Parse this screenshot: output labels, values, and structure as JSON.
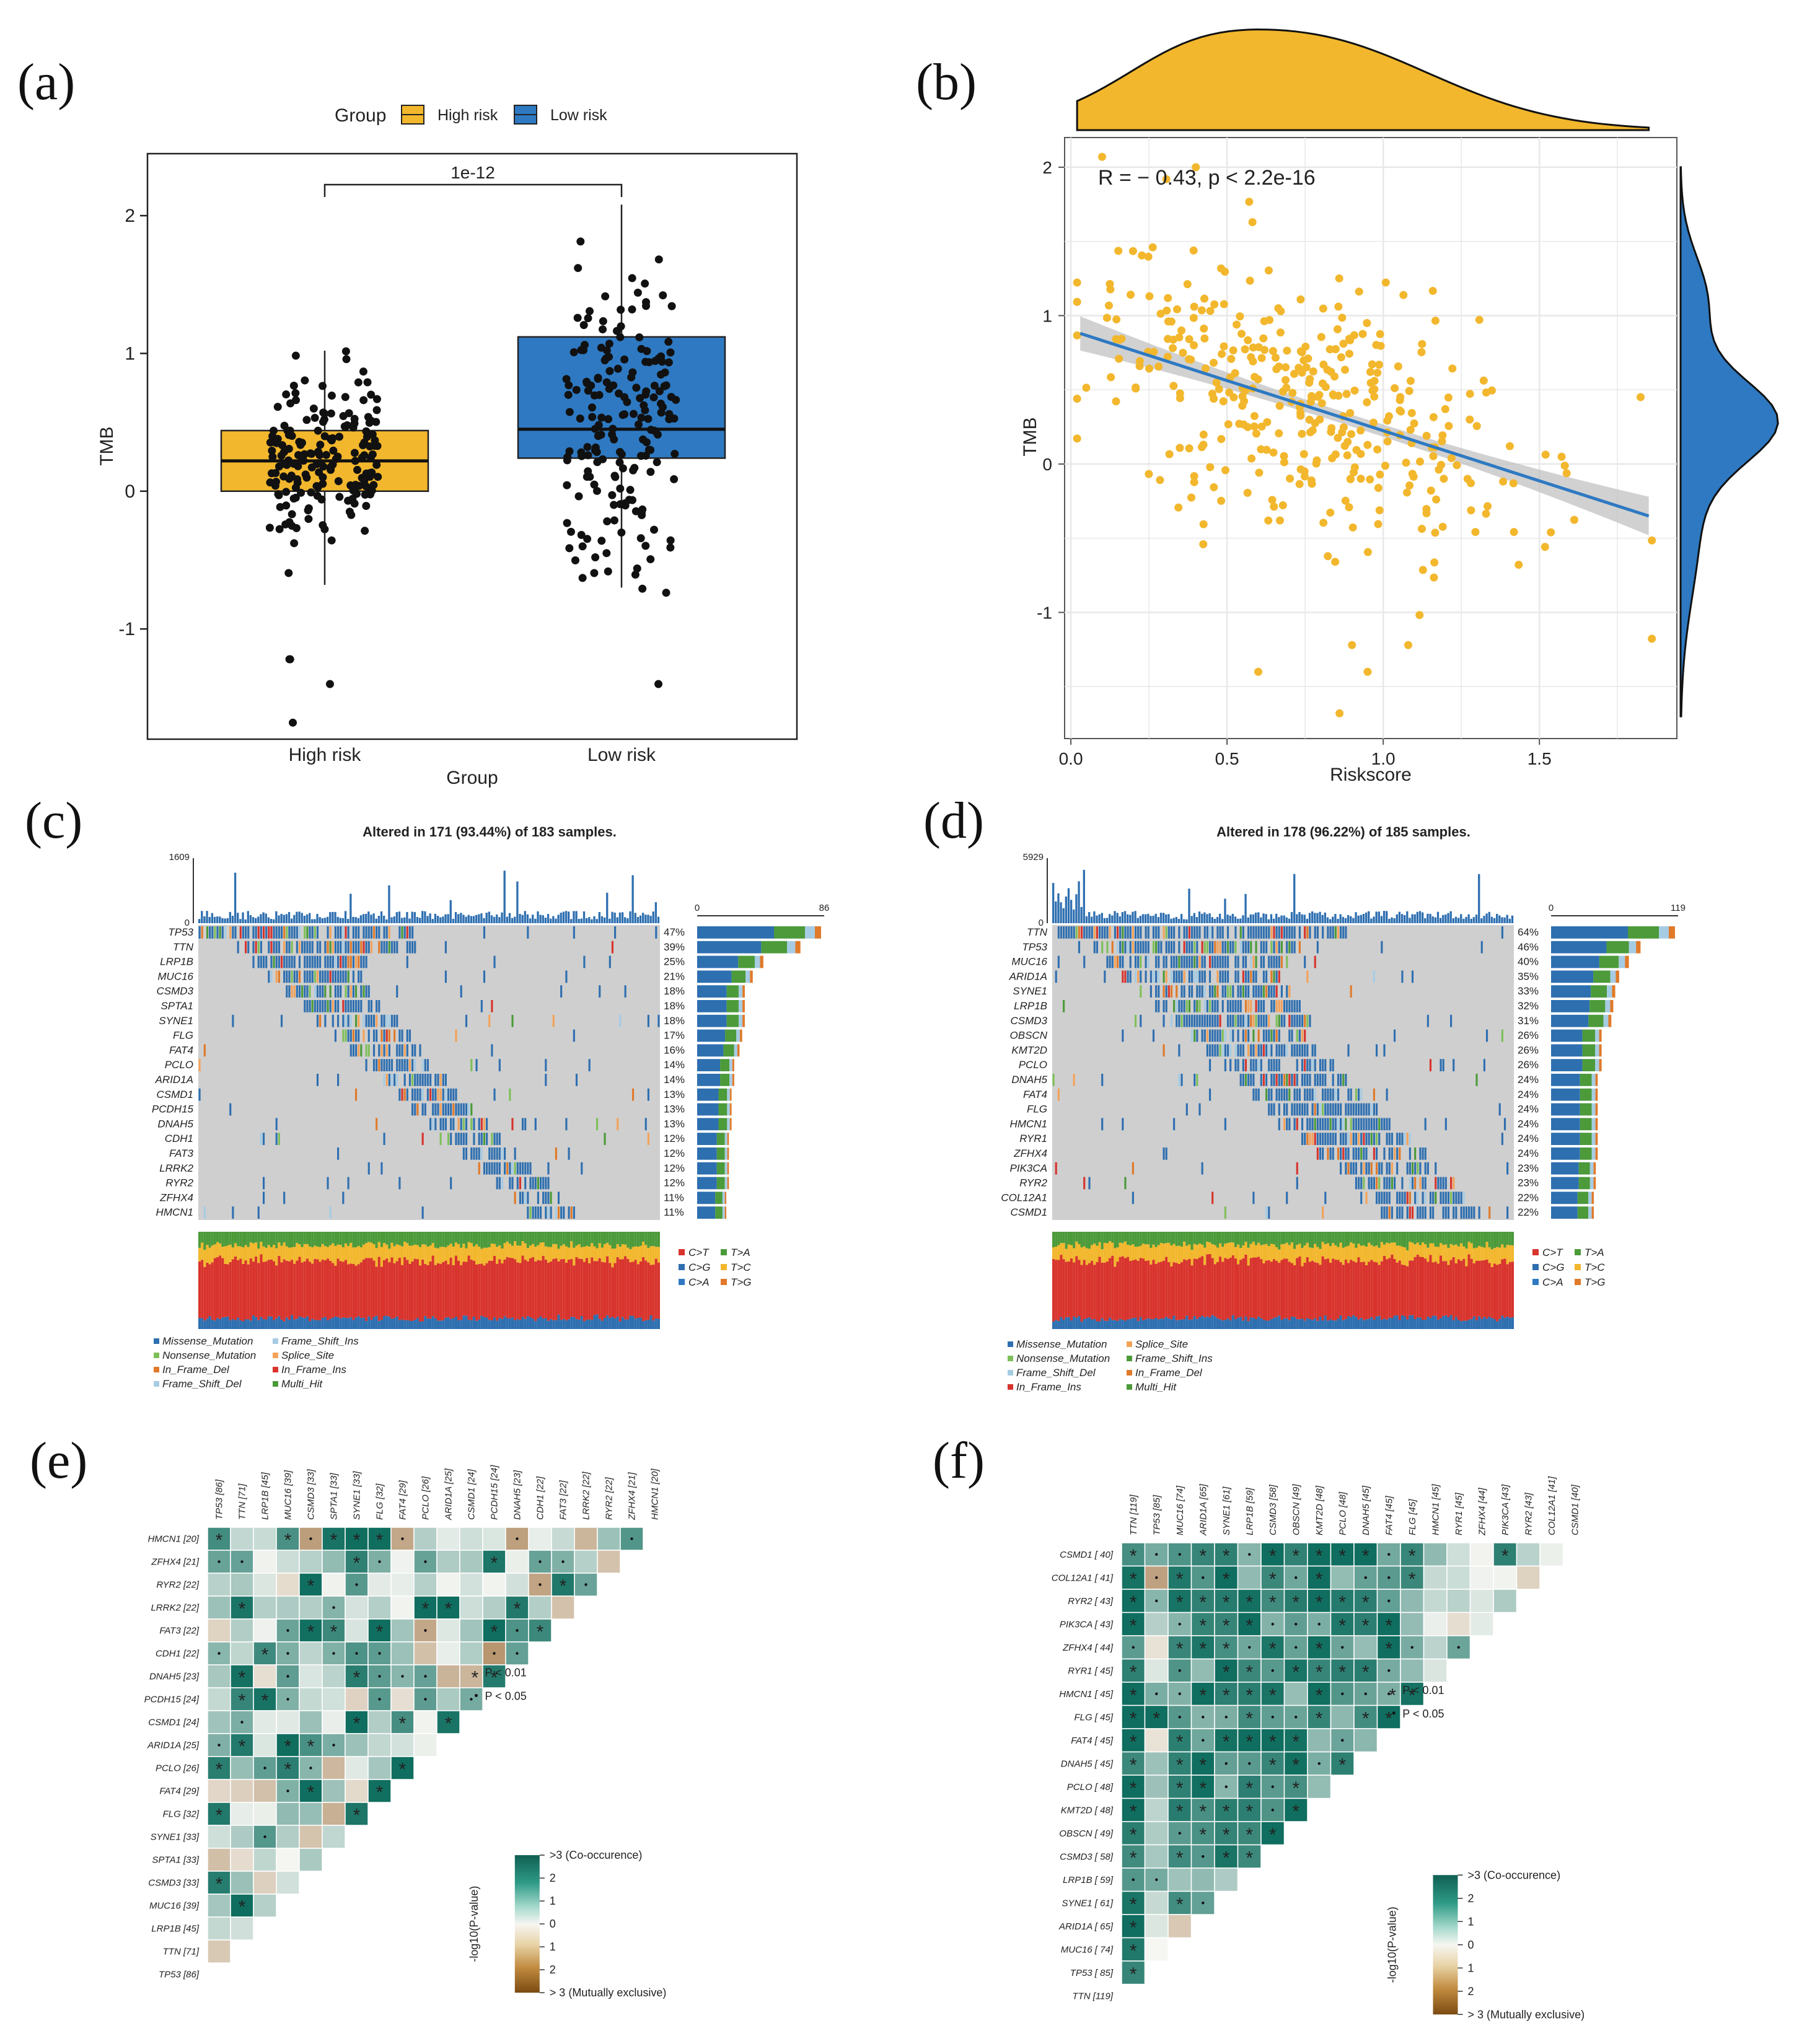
{
  "panels": {
    "a": "(a)",
    "b": "(b)",
    "c": "(c)",
    "d": "(d)",
    "e": "(e)",
    "f": "(f)"
  },
  "colors": {
    "high": "#F2B72D",
    "low": "#2E79C2",
    "teal": "#1D7C6C",
    "brown": "#9A5F1B",
    "grid": "#E6E6E6"
  },
  "chart_data": [
    {
      "id": "a",
      "type": "box",
      "legend_title": "Group",
      "legend": [
        "High risk",
        "Low risk"
      ],
      "xlabel": "Group",
      "ylabel": "TMB",
      "categories": [
        "High risk",
        "Low risk"
      ],
      "yticks": [
        "-1",
        "0",
        "1",
        "2"
      ],
      "ylim": [
        -1.8,
        2.45
      ],
      "pvalue": "1e-12",
      "boxes": [
        {
          "q1": 0.0,
          "median": 0.22,
          "q3": 0.44,
          "lo": -0.68,
          "hi": 1.02
        },
        {
          "q1": 0.24,
          "median": 0.45,
          "q3": 1.12,
          "lo": -0.7,
          "hi": 2.08
        }
      ]
    },
    {
      "id": "b",
      "type": "scatter",
      "xlabel": "Riskscore",
      "ylabel": "TMB",
      "xticks": [
        "0.0",
        "0.5",
        "1.0",
        "1.5"
      ],
      "yticks": [
        "-1",
        "0",
        "1",
        "2"
      ],
      "xlim": [
        -0.02,
        1.94
      ],
      "ylim": [
        -1.85,
        2.2
      ],
      "annotation": "R = − 0.43, p < 2.2e-16",
      "fit": {
        "x0": 0.03,
        "y0": 0.88,
        "x1": 1.85,
        "y1": -0.35
      }
    },
    {
      "id": "c",
      "type": "oncoplot",
      "title": "Altered in 171 (93.44%) of 183 samples.",
      "top_max": "1609",
      "top_min": "0",
      "side_min": "0",
      "side_max": "86",
      "genes": [
        "TP53",
        "TTN",
        "LRP1B",
        "MUC16",
        "CSMD3",
        "SPTA1",
        "SYNE1",
        "FLG",
        "FAT4",
        "PCLO",
        "ARID1A",
        "CSMD1",
        "PCDH15",
        "DNAH5",
        "CDH1",
        "FAT3",
        "LRRK2",
        "RYR2",
        "ZFHX4",
        "HMCN1"
      ],
      "percents": [
        "47%",
        "39%",
        "25%",
        "21%",
        "18%",
        "18%",
        "18%",
        "17%",
        "16%",
        "14%",
        "14%",
        "13%",
        "13%",
        "13%",
        "12%",
        "12%",
        "12%",
        "12%",
        "11%",
        "11%"
      ],
      "titv_legend": [
        "C>T",
        "T>A",
        "C>G",
        "T>C",
        "C>A",
        "T>G"
      ],
      "mutation_legend": [
        "Missense_Mutation",
        "Frame_Shift_Ins",
        "Nonsense_Mutation",
        "Splice_Site",
        "In_Frame_Del",
        "In_Frame_Ins",
        "Frame_Shift_Del",
        "Multi_Hit"
      ]
    },
    {
      "id": "d",
      "type": "oncoplot",
      "title": "Altered in 178 (96.22%) of 185 samples.",
      "top_max": "5929",
      "top_min": "0",
      "side_min": "0",
      "side_max": "119",
      "genes": [
        "TTN",
        "TP53",
        "MUC16",
        "ARID1A",
        "SYNE1",
        "LRP1B",
        "CSMD3",
        "OBSCN",
        "KMT2D",
        "PCLO",
        "DNAH5",
        "FAT4",
        "FLG",
        "HMCN1",
        "RYR1",
        "ZFHX4",
        "PIK3CA",
        "RYR2",
        "COL12A1",
        "CSMD1"
      ],
      "percents": [
        "64%",
        "46%",
        "40%",
        "35%",
        "33%",
        "32%",
        "31%",
        "26%",
        "26%",
        "26%",
        "24%",
        "24%",
        "24%",
        "24%",
        "24%",
        "24%",
        "23%",
        "23%",
        "22%",
        "22%"
      ],
      "titv_legend": [
        "C>T",
        "T>A",
        "C>G",
        "T>C",
        "C>A",
        "T>G"
      ],
      "mutation_legend": [
        "Missense_Mutation",
        "Splice_Site",
        "Nonsense_Mutation",
        "Frame_Shift_Ins",
        "Frame_Shift_Del",
        "In_Frame_Del",
        "In_Frame_Ins",
        "Multi_Hit"
      ]
    },
    {
      "id": "e",
      "type": "heatmap",
      "col_genes": [
        "TP53 [86]",
        "TTN [71]",
        "LRP1B [45]",
        "MUC16 [39]",
        "CSMD3 [33]",
        "SPTA1 [33]",
        "SYNE1 [33]",
        "FLG [32]",
        "FAT4 [29]",
        "PCLO [26]",
        "ARID1A [25]",
        "CSMD1 [24]",
        "PCDH15 [24]",
        "DNAH5 [23]",
        "CDH1 [22]",
        "FAT3 [22]",
        "LRRK2 [22]",
        "RYR2 [22]",
        "ZFHX4 [21]",
        "HMCN1 [20]"
      ],
      "row_genes": [
        "HMCN1 [20]",
        "ZFHX4 [21]",
        "RYR2 [22]",
        "LRRK2 [22]",
        "FAT3 [22]",
        "CDH1 [22]",
        "DNAH5 [23]",
        "PCDH15 [24]",
        "CSMD1 [24]",
        "ARID1A [25]",
        "PCLO [26]",
        "FAT4 [29]",
        "FLG [32]",
        "SYNE1 [33]",
        "SPTA1 [33]",
        "CSMD3 [33]",
        "MUC16 [39]",
        "LRP1B [45]",
        "TTN [71]",
        "TP53 [86]"
      ],
      "sig_legend": [
        "P < 0.01",
        "P < 0.05"
      ],
      "colorbar_title": "-log10(P-value)",
      "colorbar_ticks": [
        ">3 (Co-occurence)",
        "2",
        "1",
        "0",
        "1",
        "2",
        "> 3 (Mutually exclusive)"
      ]
    },
    {
      "id": "f",
      "type": "heatmap",
      "col_genes": [
        "TTN [119]",
        "TP53 [85]",
        "MUC16 [74]",
        "ARID1A [65]",
        "SYNE1 [61]",
        "LRP1B [59]",
        "CSMD3 [58]",
        "OBSCN [49]",
        "KMT2D [48]",
        "PCLO [48]",
        "DNAH5 [45]",
        "FAT4 [45]",
        "FLG [45]",
        "HMCN1 [45]",
        "RYR1 [45]",
        "ZFHX4 [44]",
        "PIK3CA [43]",
        "RYR2 [43]",
        "COL12A1 [41]",
        "CSMD1 [40]"
      ],
      "row_genes": [
        "CSMD1 [ 40]",
        "COL12A1 [ 41]",
        "RYR2 [ 43]",
        "PIK3CA [ 43]",
        "ZFHX4 [ 44]",
        "RYR1 [ 45]",
        "HMCN1 [ 45]",
        "FLG [ 45]",
        "FAT4 [ 45]",
        "DNAH5 [ 45]",
        "PCLO [ 48]",
        "KMT2D [ 48]",
        "OBSCN [ 49]",
        "CSMD3 [ 58]",
        "LRP1B [ 59]",
        "SYNE1 [ 61]",
        "ARID1A [ 65]",
        "MUC16 [ 74]",
        "TP53 [ 85]",
        "TTN [119]"
      ],
      "sig_legend": [
        "P < 0.01",
        "P < 0.05"
      ],
      "colorbar_title": "-log10(P-value)",
      "colorbar_ticks": [
        ">3 (Co-occurence)",
        "2",
        "1",
        "0",
        "1",
        "2",
        "> 3 (Mutually exclusive)"
      ]
    }
  ]
}
